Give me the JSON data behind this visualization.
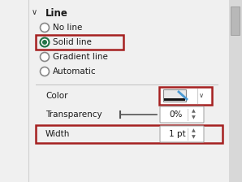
{
  "bg_color": "#f0f0f0",
  "panel_bg": "#f0f0f0",
  "scrollbar_bg": "#d4d0c8",
  "scrollbar_thumb": "#a8a8a8",
  "title": "Line",
  "chevron": "∨",
  "radio_options": [
    "No line",
    "Solid line",
    "Gradient line",
    "Automatic"
  ],
  "selected_index": 1,
  "radio_color_selected": "#217346",
  "radio_border_unsel": "#888888",
  "label_color": "#1a1a1a",
  "highlight_red": "#a52020",
  "color_label": "Color",
  "transparency_label": "Transparency",
  "width_label": "Width",
  "transparency_value": "0%",
  "width_value": "1 pt",
  "font_size": 7.5,
  "title_font_size": 8.5,
  "separator_color": "#c0c0c0",
  "box_border": "#aaaaaa",
  "spinner_color": "#666666",
  "underline_color": "#000000"
}
